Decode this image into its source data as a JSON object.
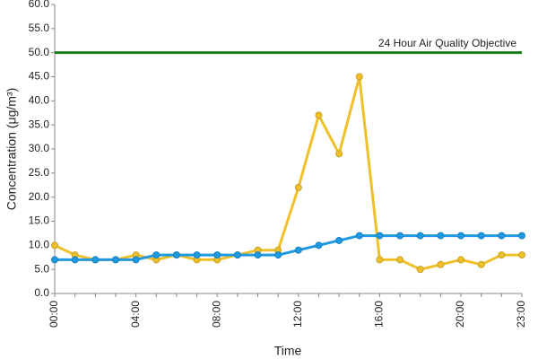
{
  "chart_data": {
    "type": "line",
    "x_label": "Time",
    "y_label": "Concentration (μg/m³)",
    "categories": [
      "00:00",
      null,
      null,
      null,
      "04:00",
      null,
      null,
      null,
      "08:00",
      null,
      null,
      null,
      "12:00",
      null,
      null,
      null,
      "16:00",
      null,
      null,
      null,
      "20:00",
      null,
      null,
      "23:00"
    ],
    "series": [
      {
        "color": "#f0c02a",
        "values": [
          10,
          8,
          7,
          7,
          8,
          7,
          8,
          7,
          7,
          8,
          9,
          9,
          22,
          37,
          29,
          45,
          7,
          7,
          5,
          6,
          7,
          6,
          8,
          8
        ]
      },
      {
        "color": "#1f9ae0",
        "values": [
          7,
          7,
          7,
          7,
          7,
          8,
          8,
          8,
          8,
          8,
          8,
          8,
          9,
          10,
          11,
          12,
          12,
          12,
          12,
          12,
          12,
          12,
          12,
          12
        ]
      }
    ],
    "reference_line": {
      "value": 50,
      "label": "24 Hour Air Quality Objective",
      "color": "#1b7d1b"
    },
    "ylim": [
      0,
      60
    ],
    "yticks": [
      {
        "value": 0,
        "label": "0.0"
      },
      {
        "value": 5,
        "label": "5.0"
      },
      {
        "value": 10,
        "label": "10.0"
      },
      {
        "value": 15,
        "label": "15.0"
      },
      {
        "value": 20,
        "label": "20.0"
      },
      {
        "value": 25,
        "label": "25.0"
      },
      {
        "value": 30,
        "label": "30.0"
      },
      {
        "value": 35,
        "label": "35.0"
      },
      {
        "value": 40,
        "label": "40.0"
      },
      {
        "value": 45,
        "label": "45.0"
      },
      {
        "value": 50,
        "label": "50.0"
      },
      {
        "value": 55,
        "label": "55.0"
      },
      {
        "value": 60,
        "label": "60.0"
      }
    ],
    "grid": false
  }
}
